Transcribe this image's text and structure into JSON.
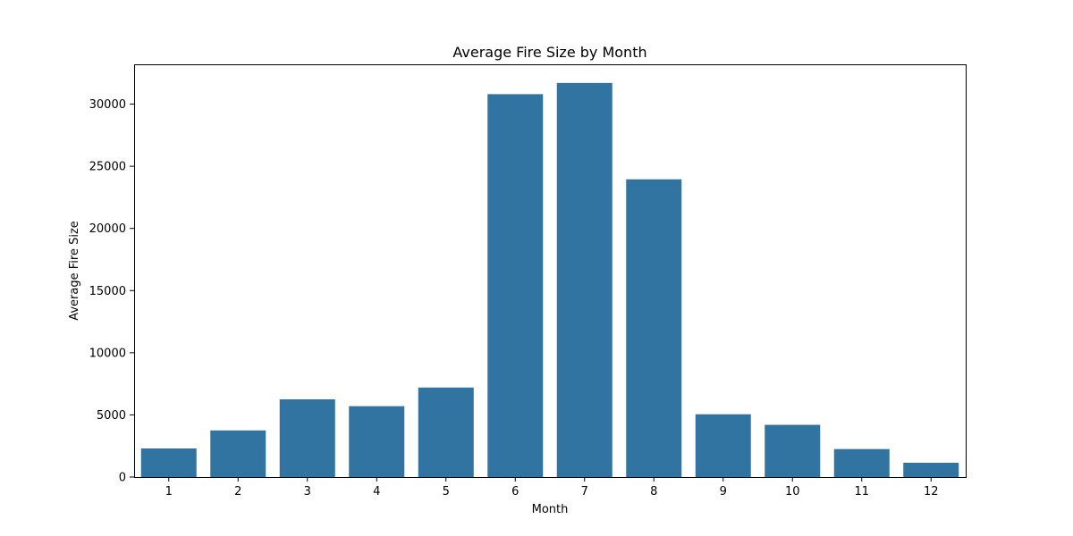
{
  "chart_data": {
    "type": "bar",
    "title": "Average Fire Size by Month",
    "xlabel": "Month",
    "ylabel": "Average Fire Size",
    "categories": [
      "1",
      "2",
      "3",
      "4",
      "5",
      "6",
      "7",
      "8",
      "9",
      "10",
      "11",
      "12"
    ],
    "values": [
      2300,
      3750,
      6250,
      5700,
      7200,
      30800,
      31700,
      23950,
      5050,
      4200,
      2250,
      1150
    ],
    "ylim": [
      0,
      33200
    ],
    "yticks": [
      0,
      5000,
      10000,
      15000,
      20000,
      25000,
      30000
    ],
    "grid": false,
    "legend": "none",
    "bar_color": "#3274a1"
  }
}
